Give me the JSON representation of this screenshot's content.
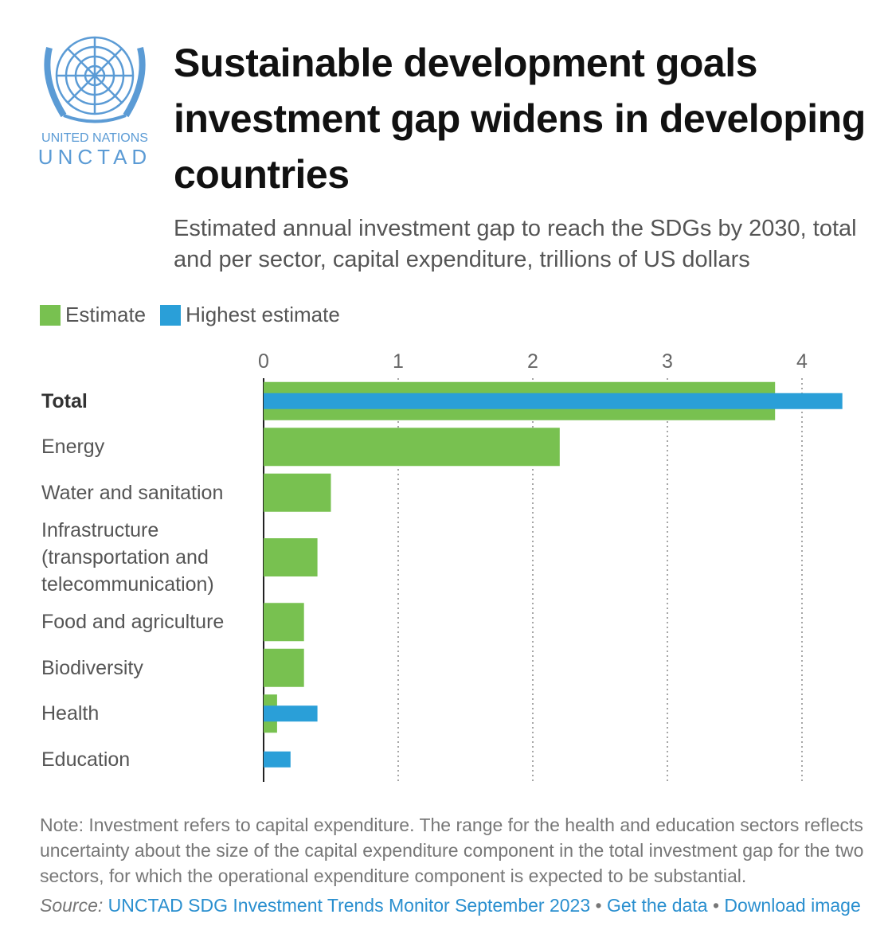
{
  "logo": {
    "line1": "UNITED NATIONS",
    "line2": "UNCTAD"
  },
  "chart_data": {
    "type": "bar",
    "orientation": "horizontal",
    "title": "Sustainable development goals investment gap widens in developing countries",
    "subtitle": "Estimated annual investment gap to reach the SDGs by 2030, total and per sector, capital expenditure, trillions of US dollars",
    "categories": [
      "Total",
      "Energy",
      "Water and sanitation",
      "Infrastructure (transportation and telecommunication)",
      "Food and agriculture",
      "Biodiversity",
      "Health",
      "Education"
    ],
    "series": [
      {
        "name": "Estimate",
        "color": "#78c150",
        "values": [
          3.8,
          2.2,
          0.5,
          0.4,
          0.3,
          0.3,
          0.1,
          null
        ]
      },
      {
        "name": "Highest estimate",
        "color": "#2a9fd8",
        "values": [
          4.3,
          null,
          null,
          null,
          null,
          null,
          0.4,
          0.2
        ]
      }
    ],
    "xlim": [
      0,
      4.4
    ],
    "xticks": [
      0,
      1,
      2,
      3,
      4
    ],
    "grid": true,
    "legend": "top-left",
    "note": "Note: Investment refers to capital expenditure. The range for the health and education sectors reflects uncertainty about the size of the capital expenditure component in the total investment gap for the two sectors, for which the operational expenditure component is expected to be substantial.",
    "source": {
      "label": "Source:",
      "text": "UNCTAD SDG Investment Trends Monitor September 2023",
      "separator": "•",
      "link1": "Get the data",
      "link2": "Download image"
    }
  }
}
